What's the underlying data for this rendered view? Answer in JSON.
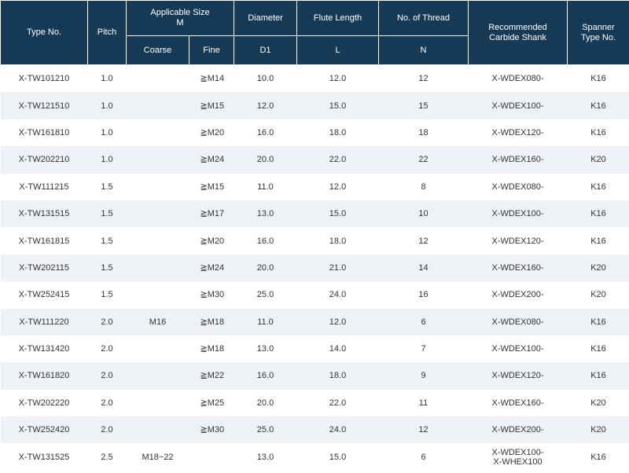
{
  "headers": {
    "type_no": "Type No.",
    "pitch": "Pitch",
    "applicable_size_line1": "Applicable Size",
    "applicable_size_line2": "M",
    "diameter": "Diameter",
    "flute_length": "Flute Length",
    "no_of_thread": "No. of Thread",
    "recommended_line1": "Recommended",
    "recommended_line2": "Carbide Shank",
    "spanner_line1": "Spanner",
    "spanner_line2": "Type No.",
    "coarse": "Coarse",
    "fine": "Fine",
    "d1": "D1",
    "l": "L",
    "n": "N"
  },
  "rows": [
    {
      "type": "X-TW101210",
      "pitch": "1.0",
      "coarse": "",
      "fine": "≧M14",
      "d1": "10.0",
      "l": "12.0",
      "n": "12",
      "shank": "X-WDEX080-",
      "shank2": "",
      "spanner": "K16"
    },
    {
      "type": "X-TW121510",
      "pitch": "1.0",
      "coarse": "",
      "fine": "≧M15",
      "d1": "12.0",
      "l": "15.0",
      "n": "15",
      "shank": "X-WDEX100-",
      "shank2": "",
      "spanner": "K16"
    },
    {
      "type": "X-TW161810",
      "pitch": "1.0",
      "coarse": "",
      "fine": "≧M20",
      "d1": "16.0",
      "l": "18.0",
      "n": "18",
      "shank": "X-WDEX120-",
      "shank2": "",
      "spanner": "K16"
    },
    {
      "type": "X-TW202210",
      "pitch": "1.0",
      "coarse": "",
      "fine": "≧M24",
      "d1": "20.0",
      "l": "22.0",
      "n": "22",
      "shank": "X-WDEX160-",
      "shank2": "",
      "spanner": "K20"
    },
    {
      "type": "X-TW111215",
      "pitch": "1.5",
      "coarse": "",
      "fine": "≧M15",
      "d1": "11.0",
      "l": "12.0",
      "n": "8",
      "shank": "X-WDEX080-",
      "shank2": "",
      "spanner": "K16"
    },
    {
      "type": "X-TW131515",
      "pitch": "1.5",
      "coarse": "",
      "fine": "≧M17",
      "d1": "13.0",
      "l": "15.0",
      "n": "10",
      "shank": "X-WDEX100-",
      "shank2": "",
      "spanner": "K16"
    },
    {
      "type": "X-TW161815",
      "pitch": "1.5",
      "coarse": "",
      "fine": "≧M20",
      "d1": "16.0",
      "l": "18.0",
      "n": "12",
      "shank": "X-WDEX120-",
      "shank2": "",
      "spanner": "K16"
    },
    {
      "type": "X-TW202115",
      "pitch": "1.5",
      "coarse": "",
      "fine": "≧M24",
      "d1": "20.0",
      "l": "21.0",
      "n": "14",
      "shank": "X-WDEX160-",
      "shank2": "",
      "spanner": "K20"
    },
    {
      "type": "X-TW252415",
      "pitch": "1.5",
      "coarse": "",
      "fine": "≧M30",
      "d1": "25.0",
      "l": "24.0",
      "n": "16",
      "shank": "X-WDEX200-",
      "shank2": "",
      "spanner": "K20"
    },
    {
      "type": "X-TW111220",
      "pitch": "2.0",
      "coarse": "M16",
      "fine": "≧M18",
      "d1": "11.0",
      "l": "12.0",
      "n": "6",
      "shank": "X-WDEX080-",
      "shank2": "",
      "spanner": "K16"
    },
    {
      "type": "X-TW131420",
      "pitch": "2.0",
      "coarse": "",
      "fine": "≧M18",
      "d1": "13.0",
      "l": "14.0",
      "n": "7",
      "shank": "X-WDEX100-",
      "shank2": "",
      "spanner": "K16"
    },
    {
      "type": "X-TW161820",
      "pitch": "2.0",
      "coarse": "",
      "fine": "≧M22",
      "d1": "16.0",
      "l": "18.0",
      "n": "9",
      "shank": "X-WDEX120-",
      "shank2": "",
      "spanner": "K16"
    },
    {
      "type": "X-TW202220",
      "pitch": "2.0",
      "coarse": "",
      "fine": "≧M25",
      "d1": "20.0",
      "l": "22.0",
      "n": "11",
      "shank": "X-WDEX160-",
      "shank2": "",
      "spanner": "K20"
    },
    {
      "type": "X-TW252420",
      "pitch": "2.0",
      "coarse": "",
      "fine": "≧M30",
      "d1": "25.0",
      "l": "24.0",
      "n": "12",
      "shank": "X-WDEX200-",
      "shank2": "",
      "spanner": "K20"
    },
    {
      "type": "X-TW131525",
      "pitch": "2.5",
      "coarse": "M18~22",
      "fine": "",
      "d1": "13.0",
      "l": "15.0",
      "n": "6",
      "shank": "X-WDEX100-",
      "shank2": "X-WHEX100",
      "spanner": "K16"
    }
  ],
  "colors": {
    "header_bg": "#163a55",
    "header_text": "#ffffff",
    "stripe": "#eef2f7",
    "body_text": "#333333"
  }
}
